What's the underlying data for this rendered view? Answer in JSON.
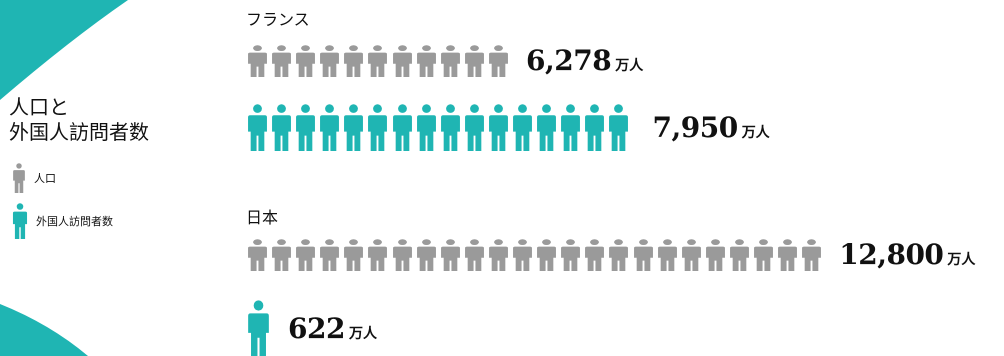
{
  "title": {
    "line1": "人口と",
    "line2": "外国人訪問者数"
  },
  "legend": [
    {
      "label": "人口",
      "color": "#9a9a9a"
    },
    {
      "label": "外国人訪問者数",
      "color": "#1fb5b3"
    }
  ],
  "chart_data": {
    "type": "pictogram",
    "unit_label": "万人",
    "groups": [
      {
        "name": "フランス",
        "series": [
          {
            "name": "人口",
            "value": 6278,
            "value_label": "6,278",
            "icon_count": 11,
            "color": "#9a9a9a"
          },
          {
            "name": "外国人訪問者数",
            "value": 7950,
            "value_label": "7,950",
            "icon_count": 16,
            "color": "#1fb5b3"
          }
        ]
      },
      {
        "name": "日本",
        "series": [
          {
            "name": "人口",
            "value": 12800,
            "value_label": "12,800",
            "icon_count": 24,
            "color": "#9a9a9a"
          },
          {
            "name": "外国人訪問者数",
            "value": 622,
            "value_label": "622",
            "icon_count": 1,
            "color": "#1fb5b3"
          }
        ]
      }
    ]
  },
  "colors": {
    "gray": "#9a9a9a",
    "teal": "#1fb5b3",
    "text": "#111111"
  },
  "icons": {
    "person": "person-icon"
  }
}
